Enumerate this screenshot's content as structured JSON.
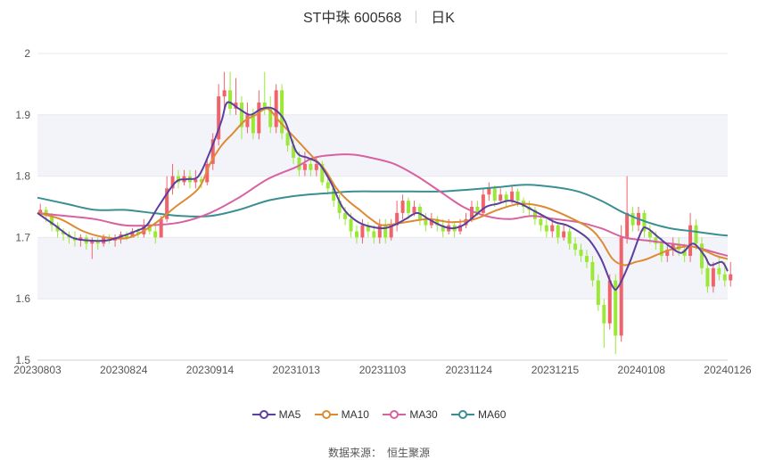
{
  "header": {
    "stock_name": "ST中珠 600568",
    "period": "日K"
  },
  "legend": [
    {
      "name": "MA5",
      "color": "#5c3f9e"
    },
    {
      "name": "MA10",
      "color": "#dd8b33"
    },
    {
      "name": "MA30",
      "color": "#d861a0"
    },
    {
      "name": "MA60",
      "color": "#3a8f93"
    }
  ],
  "footer": {
    "source_label": "数据来源：",
    "source_name": "恒生聚源"
  },
  "colors": {
    "up": "#f0636b",
    "down": "#9be836",
    "band": "#f3f4fa",
    "grid": "#e8e8ee"
  },
  "chart_data": {
    "type": "candlestick",
    "title": "ST中珠 600568",
    "x_ticks": [
      "20230803",
      "20230824",
      "20230914",
      "20231013",
      "20231103",
      "20231124",
      "20231215",
      "20240108",
      "20240126"
    ],
    "y_ticks": [
      "1.5",
      "1.6",
      "1.7",
      "1.8",
      "1.9",
      "2"
    ],
    "ylim": [
      1.5,
      2.0
    ],
    "grid": true,
    "legend_position": "bottom",
    "trading_days": 120,
    "ma_series": [
      {
        "name": "MA5",
        "color": "#5c3f9e",
        "points": [
          [
            0,
            1.74
          ],
          [
            3,
            1.72
          ],
          [
            6,
            1.7
          ],
          [
            9,
            1.695
          ],
          [
            12,
            1.695
          ],
          [
            14,
            1.7
          ],
          [
            17,
            1.71
          ],
          [
            19,
            1.72
          ],
          [
            21,
            1.75
          ],
          [
            24,
            1.79
          ],
          [
            26,
            1.795
          ],
          [
            28,
            1.8
          ],
          [
            30,
            1.84
          ],
          [
            32,
            1.89
          ],
          [
            33,
            1.92
          ],
          [
            35,
            1.91
          ],
          [
            37,
            1.9
          ],
          [
            39,
            1.91
          ],
          [
            41,
            1.91
          ],
          [
            43,
            1.89
          ],
          [
            45,
            1.84
          ],
          [
            47,
            1.83
          ],
          [
            49,
            1.82
          ],
          [
            51,
            1.79
          ],
          [
            53,
            1.75
          ],
          [
            55,
            1.73
          ],
          [
            57,
            1.72
          ],
          [
            60,
            1.715
          ],
          [
            62,
            1.72
          ],
          [
            64,
            1.73
          ],
          [
            66,
            1.74
          ],
          [
            68,
            1.73
          ],
          [
            70,
            1.72
          ],
          [
            72,
            1.715
          ],
          [
            74,
            1.72
          ],
          [
            76,
            1.735
          ],
          [
            78,
            1.75
          ],
          [
            80,
            1.755
          ],
          [
            82,
            1.76
          ],
          [
            84,
            1.755
          ],
          [
            86,
            1.745
          ],
          [
            88,
            1.735
          ],
          [
            90,
            1.725
          ],
          [
            92,
            1.72
          ],
          [
            94,
            1.71
          ],
          [
            96,
            1.695
          ],
          [
            98,
            1.665
          ],
          [
            100,
            1.62
          ],
          [
            101,
            1.62
          ],
          [
            103,
            1.66
          ],
          [
            105,
            1.71
          ],
          [
            106,
            1.715
          ],
          [
            108,
            1.7
          ],
          [
            110,
            1.685
          ],
          [
            112,
            1.675
          ],
          [
            114,
            1.69
          ],
          [
            116,
            1.67
          ],
          [
            117,
            1.655
          ],
          [
            119,
            1.66
          ],
          [
            120,
            1.645
          ]
        ]
      },
      {
        "name": "MA10",
        "color": "#dd8b33",
        "points": [
          [
            0,
            1.74
          ],
          [
            4,
            1.73
          ],
          [
            8,
            1.71
          ],
          [
            12,
            1.7
          ],
          [
            16,
            1.7
          ],
          [
            20,
            1.72
          ],
          [
            24,
            1.75
          ],
          [
            28,
            1.78
          ],
          [
            30,
            1.82
          ],
          [
            32,
            1.85
          ],
          [
            34,
            1.87
          ],
          [
            36,
            1.89
          ],
          [
            38,
            1.9
          ],
          [
            40,
            1.91
          ],
          [
            42,
            1.89
          ],
          [
            44,
            1.87
          ],
          [
            46,
            1.85
          ],
          [
            48,
            1.83
          ],
          [
            50,
            1.81
          ],
          [
            52,
            1.78
          ],
          [
            54,
            1.76
          ],
          [
            56,
            1.745
          ],
          [
            58,
            1.73
          ],
          [
            60,
            1.72
          ],
          [
            64,
            1.725
          ],
          [
            68,
            1.73
          ],
          [
            72,
            1.725
          ],
          [
            76,
            1.73
          ],
          [
            80,
            1.745
          ],
          [
            84,
            1.755
          ],
          [
            88,
            1.75
          ],
          [
            92,
            1.735
          ],
          [
            96,
            1.715
          ],
          [
            98,
            1.695
          ],
          [
            100,
            1.665
          ],
          [
            102,
            1.655
          ],
          [
            104,
            1.66
          ],
          [
            106,
            1.665
          ],
          [
            110,
            1.68
          ],
          [
            114,
            1.685
          ],
          [
            118,
            1.67
          ],
          [
            120,
            1.665
          ]
        ]
      },
      {
        "name": "MA30",
        "color": "#d861a0",
        "points": [
          [
            0,
            1.74
          ],
          [
            5,
            1.735
          ],
          [
            10,
            1.73
          ],
          [
            15,
            1.72
          ],
          [
            20,
            1.72
          ],
          [
            25,
            1.725
          ],
          [
            30,
            1.74
          ],
          [
            35,
            1.765
          ],
          [
            40,
            1.795
          ],
          [
            45,
            1.815
          ],
          [
            48,
            1.83
          ],
          [
            52,
            1.835
          ],
          [
            55,
            1.835
          ],
          [
            58,
            1.83
          ],
          [
            62,
            1.82
          ],
          [
            66,
            1.8
          ],
          [
            70,
            1.775
          ],
          [
            74,
            1.75
          ],
          [
            78,
            1.735
          ],
          [
            82,
            1.73
          ],
          [
            86,
            1.735
          ],
          [
            90,
            1.73
          ],
          [
            94,
            1.725
          ],
          [
            98,
            1.715
          ],
          [
            102,
            1.7
          ],
          [
            106,
            1.695
          ],
          [
            110,
            1.69
          ],
          [
            114,
            1.685
          ],
          [
            118,
            1.675
          ],
          [
            120,
            1.67
          ]
        ]
      },
      {
        "name": "MA60",
        "color": "#3a8f93",
        "points": [
          [
            0,
            1.765
          ],
          [
            5,
            1.755
          ],
          [
            10,
            1.745
          ],
          [
            15,
            1.745
          ],
          [
            20,
            1.74
          ],
          [
            25,
            1.735
          ],
          [
            30,
            1.735
          ],
          [
            35,
            1.745
          ],
          [
            40,
            1.76
          ],
          [
            45,
            1.768
          ],
          [
            50,
            1.772
          ],
          [
            55,
            1.775
          ],
          [
            60,
            1.775
          ],
          [
            65,
            1.775
          ],
          [
            70,
            1.775
          ],
          [
            75,
            1.778
          ],
          [
            80,
            1.782
          ],
          [
            85,
            1.786
          ],
          [
            90,
            1.782
          ],
          [
            94,
            1.775
          ],
          [
            98,
            1.76
          ],
          [
            102,
            1.74
          ],
          [
            106,
            1.725
          ],
          [
            110,
            1.715
          ],
          [
            114,
            1.71
          ],
          [
            118,
            1.705
          ],
          [
            120,
            1.703
          ]
        ]
      }
    ],
    "candles": [
      [
        1.74,
        1.745,
        1.755,
        1.735
      ],
      [
        1.745,
        1.735,
        1.75,
        1.725
      ],
      [
        1.735,
        1.72,
        1.74,
        1.71
      ],
      [
        1.72,
        1.71,
        1.725,
        1.7
      ],
      [
        1.71,
        1.705,
        1.715,
        1.695
      ],
      [
        1.705,
        1.7,
        1.71,
        1.69
      ],
      [
        1.7,
        1.695,
        1.71,
        1.685
      ],
      [
        1.695,
        1.7,
        1.705,
        1.685
      ],
      [
        1.7,
        1.69,
        1.705,
        1.68
      ],
      [
        1.69,
        1.695,
        1.7,
        1.665
      ],
      [
        1.695,
        1.69,
        1.7,
        1.68
      ],
      [
        1.69,
        1.7,
        1.705,
        1.685
      ],
      [
        1.7,
        1.695,
        1.705,
        1.69
      ],
      [
        1.695,
        1.7,
        1.705,
        1.685
      ],
      [
        1.7,
        1.705,
        1.71,
        1.69
      ],
      [
        1.705,
        1.7,
        1.71,
        1.695
      ],
      [
        1.7,
        1.71,
        1.715,
        1.7
      ],
      [
        1.71,
        1.705,
        1.715,
        1.7
      ],
      [
        1.705,
        1.72,
        1.73,
        1.7
      ],
      [
        1.72,
        1.71,
        1.725,
        1.705
      ],
      [
        1.71,
        1.7,
        1.725,
        1.69
      ],
      [
        1.7,
        1.73,
        1.735,
        1.7
      ],
      [
        1.73,
        1.78,
        1.8,
        1.725
      ],
      [
        1.78,
        1.8,
        1.82,
        1.77
      ],
      [
        1.8,
        1.79,
        1.81,
        1.78
      ],
      [
        1.79,
        1.8,
        1.81,
        1.785
      ],
      [
        1.8,
        1.79,
        1.81,
        1.78
      ],
      [
        1.79,
        1.795,
        1.81,
        1.78
      ],
      [
        1.795,
        1.79,
        1.8,
        1.78
      ],
      [
        1.79,
        1.82,
        1.83,
        1.785
      ],
      [
        1.82,
        1.86,
        1.87,
        1.81
      ],
      [
        1.86,
        1.93,
        1.95,
        1.85
      ],
      [
        1.93,
        1.94,
        1.97,
        1.91
      ],
      [
        1.94,
        1.91,
        1.97,
        1.9
      ],
      [
        1.91,
        1.92,
        1.96,
        1.9
      ],
      [
        1.92,
        1.88,
        1.93,
        1.86
      ],
      [
        1.88,
        1.9,
        1.92,
        1.87
      ],
      [
        1.9,
        1.87,
        1.91,
        1.86
      ],
      [
        1.87,
        1.92,
        1.94,
        1.86
      ],
      [
        1.92,
        1.91,
        1.97,
        1.9
      ],
      [
        1.91,
        1.88,
        1.93,
        1.87
      ],
      [
        1.88,
        1.94,
        1.95,
        1.87
      ],
      [
        1.94,
        1.87,
        1.95,
        1.86
      ],
      [
        1.87,
        1.85,
        1.88,
        1.84
      ],
      [
        1.85,
        1.83,
        1.86,
        1.82
      ],
      [
        1.83,
        1.81,
        1.84,
        1.8
      ],
      [
        1.81,
        1.82,
        1.84,
        1.8
      ],
      [
        1.82,
        1.81,
        1.83,
        1.8
      ],
      [
        1.81,
        1.82,
        1.83,
        1.8
      ],
      [
        1.82,
        1.79,
        1.825,
        1.785
      ],
      [
        1.79,
        1.78,
        1.8,
        1.77
      ],
      [
        1.78,
        1.76,
        1.79,
        1.75
      ],
      [
        1.76,
        1.74,
        1.77,
        1.73
      ],
      [
        1.74,
        1.73,
        1.75,
        1.72
      ],
      [
        1.73,
        1.71,
        1.74,
        1.7
      ],
      [
        1.71,
        1.7,
        1.72,
        1.69
      ],
      [
        1.7,
        1.72,
        1.73,
        1.69
      ],
      [
        1.72,
        1.71,
        1.725,
        1.7
      ],
      [
        1.71,
        1.7,
        1.72,
        1.69
      ],
      [
        1.7,
        1.72,
        1.73,
        1.69
      ],
      [
        1.72,
        1.7,
        1.73,
        1.69
      ],
      [
        1.7,
        1.72,
        1.73,
        1.695
      ],
      [
        1.72,
        1.74,
        1.76,
        1.71
      ],
      [
        1.74,
        1.76,
        1.77,
        1.73
      ],
      [
        1.76,
        1.74,
        1.765,
        1.73
      ],
      [
        1.74,
        1.75,
        1.76,
        1.735
      ],
      [
        1.75,
        1.73,
        1.755,
        1.72
      ],
      [
        1.73,
        1.72,
        1.74,
        1.71
      ],
      [
        1.72,
        1.73,
        1.74,
        1.715
      ],
      [
        1.73,
        1.72,
        1.735,
        1.71
      ],
      [
        1.72,
        1.71,
        1.73,
        1.7
      ],
      [
        1.71,
        1.72,
        1.73,
        1.705
      ],
      [
        1.72,
        1.71,
        1.725,
        1.7
      ],
      [
        1.71,
        1.72,
        1.73,
        1.705
      ],
      [
        1.72,
        1.73,
        1.74,
        1.715
      ],
      [
        1.73,
        1.75,
        1.76,
        1.725
      ],
      [
        1.75,
        1.74,
        1.76,
        1.735
      ],
      [
        1.74,
        1.77,
        1.78,
        1.735
      ],
      [
        1.77,
        1.78,
        1.79,
        1.76
      ],
      [
        1.78,
        1.76,
        1.785,
        1.75
      ],
      [
        1.76,
        1.77,
        1.78,
        1.755
      ],
      [
        1.77,
        1.76,
        1.775,
        1.75
      ],
      [
        1.76,
        1.775,
        1.785,
        1.755
      ],
      [
        1.775,
        1.76,
        1.78,
        1.75
      ],
      [
        1.76,
        1.75,
        1.765,
        1.74
      ],
      [
        1.75,
        1.745,
        1.76,
        1.735
      ],
      [
        1.745,
        1.73,
        1.75,
        1.72
      ],
      [
        1.73,
        1.72,
        1.74,
        1.71
      ],
      [
        1.72,
        1.71,
        1.73,
        1.7
      ],
      [
        1.71,
        1.72,
        1.73,
        1.7
      ],
      [
        1.72,
        1.7,
        1.725,
        1.69
      ],
      [
        1.7,
        1.71,
        1.72,
        1.695
      ],
      [
        1.71,
        1.69,
        1.715,
        1.68
      ],
      [
        1.69,
        1.68,
        1.7,
        1.67
      ],
      [
        1.68,
        1.67,
        1.69,
        1.66
      ],
      [
        1.67,
        1.66,
        1.68,
        1.65
      ],
      [
        1.66,
        1.63,
        1.67,
        1.62
      ],
      [
        1.63,
        1.59,
        1.64,
        1.58
      ],
      [
        1.59,
        1.56,
        1.6,
        1.52
      ],
      [
        1.56,
        1.63,
        1.64,
        1.55
      ],
      [
        1.63,
        1.54,
        1.64,
        1.51
      ],
      [
        1.54,
        1.7,
        1.72,
        1.53
      ],
      [
        1.7,
        1.74,
        1.8,
        1.69
      ],
      [
        1.74,
        1.72,
        1.75,
        1.71
      ],
      [
        1.72,
        1.74,
        1.75,
        1.71
      ],
      [
        1.74,
        1.71,
        1.745,
        1.7
      ],
      [
        1.71,
        1.7,
        1.72,
        1.69
      ],
      [
        1.7,
        1.69,
        1.71,
        1.68
      ],
      [
        1.69,
        1.67,
        1.7,
        1.66
      ],
      [
        1.67,
        1.68,
        1.69,
        1.66
      ],
      [
        1.68,
        1.69,
        1.7,
        1.67
      ],
      [
        1.69,
        1.68,
        1.7,
        1.67
      ],
      [
        1.68,
        1.67,
        1.69,
        1.66
      ],
      [
        1.67,
        1.72,
        1.74,
        1.66
      ],
      [
        1.72,
        1.69,
        1.73,
        1.68
      ],
      [
        1.69,
        1.65,
        1.7,
        1.64
      ],
      [
        1.65,
        1.62,
        1.66,
        1.61
      ],
      [
        1.62,
        1.65,
        1.66,
        1.61
      ],
      [
        1.65,
        1.64,
        1.67,
        1.63
      ],
      [
        1.64,
        1.63,
        1.66,
        1.62
      ],
      [
        1.63,
        1.64,
        1.66,
        1.62
      ]
    ]
  }
}
